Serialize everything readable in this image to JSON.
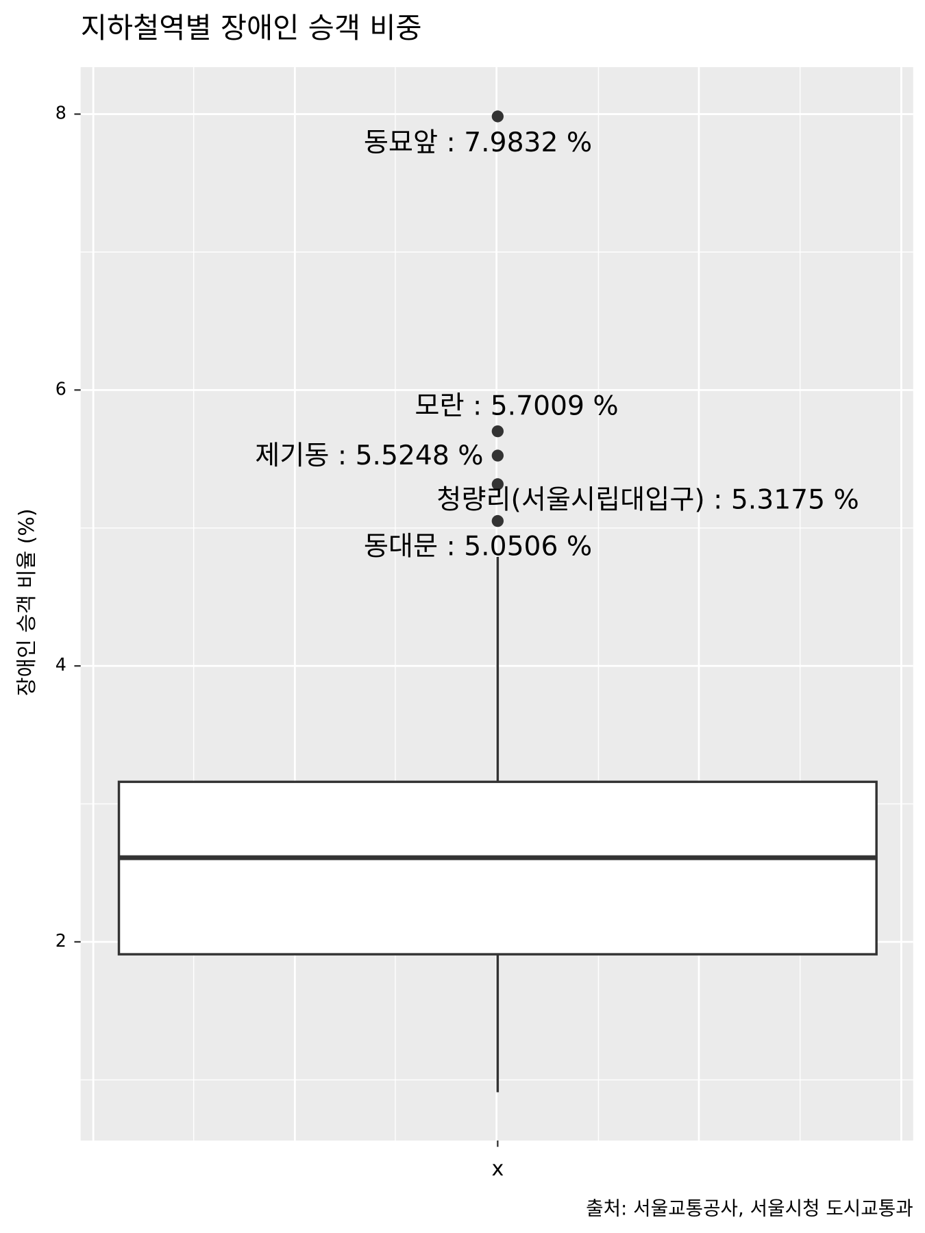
{
  "chart_data": {
    "type": "box",
    "title": "지하철역별 장애인 승객 비중",
    "y_label": "장애인 승객 비율 (%)",
    "caption": "출처: 서울교통공사, 서울시청 도시교통과",
    "categories": [
      "x"
    ],
    "boxes": [
      {
        "whisker_low": 0.91,
        "q1": 1.91,
        "median": 2.61,
        "q3": 3.16,
        "whisker_high": 4.79
      }
    ],
    "outliers": [
      7.9832,
      5.7009,
      5.5248,
      5.3175,
      5.0506
    ],
    "outlier_labels": [
      "동묘앞 : 7.9832 %",
      "모란 : 5.7009 %",
      "제기동 : 5.5248 %",
      "청량리(서울시립대입구) : 5.3175 %",
      "동대문 : 5.0506 %"
    ],
    "ylim": [
      0.56,
      8.34
    ],
    "yticks": [
      2,
      4,
      6,
      8
    ],
    "minor_yticks": [
      1,
      3,
      5,
      7
    ],
    "grid": true
  }
}
